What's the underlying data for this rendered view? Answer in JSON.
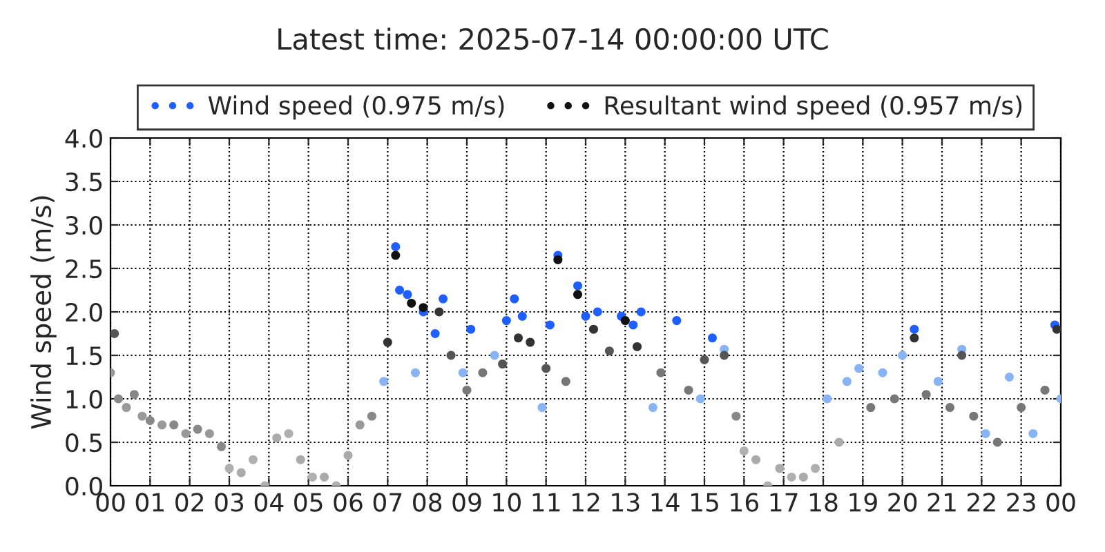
{
  "chart_data": {
    "type": "scatter",
    "title": "Latest time: 2025-07-14 00:00:00 UTC",
    "ylabel": "Wind speed (m/s)",
    "xlim": [
      0,
      24
    ],
    "ylim": [
      0,
      4
    ],
    "xticks": [
      {
        "value": 0,
        "label": "00"
      },
      {
        "value": 1,
        "label": "01"
      },
      {
        "value": 2,
        "label": "02"
      },
      {
        "value": 3,
        "label": "03"
      },
      {
        "value": 4,
        "label": "04"
      },
      {
        "value": 5,
        "label": "05"
      },
      {
        "value": 6,
        "label": "06"
      },
      {
        "value": 7,
        "label": "07"
      },
      {
        "value": 8,
        "label": "08"
      },
      {
        "value": 9,
        "label": "09"
      },
      {
        "value": 10,
        "label": "10"
      },
      {
        "value": 11,
        "label": "11"
      },
      {
        "value": 12,
        "label": "12"
      },
      {
        "value": 13,
        "label": "13"
      },
      {
        "value": 14,
        "label": "14"
      },
      {
        "value": 15,
        "label": "15"
      },
      {
        "value": 16,
        "label": "16"
      },
      {
        "value": 17,
        "label": "17"
      },
      {
        "value": 18,
        "label": "18"
      },
      {
        "value": 19,
        "label": "19"
      },
      {
        "value": 20,
        "label": "20"
      },
      {
        "value": 21,
        "label": "21"
      },
      {
        "value": 22,
        "label": "22"
      },
      {
        "value": 23,
        "label": "23"
      },
      {
        "value": 24,
        "label": "00"
      }
    ],
    "yticks": [
      {
        "value": 0,
        "label": "0.0"
      },
      {
        "value": 0.5,
        "label": "0.5"
      },
      {
        "value": 1,
        "label": "1.0"
      },
      {
        "value": 1.5,
        "label": "1.5"
      },
      {
        "value": 2,
        "label": "2.0"
      },
      {
        "value": 2.5,
        "label": "2.5"
      },
      {
        "value": 3,
        "label": "3.0"
      },
      {
        "value": 3.5,
        "label": "3.5"
      },
      {
        "value": 4,
        "label": "4.0"
      }
    ],
    "grid": true,
    "legend": "top",
    "marker": "circle",
    "series": [
      {
        "name": "Wind speed (0.975 m/s)",
        "color": "#1f5fff",
        "x": [
          0.0,
          0.4,
          0.8,
          1.3,
          1.9,
          2.5,
          3.0,
          3.6,
          3.9,
          4.5,
          5.1,
          5.7,
          6.3,
          6.9,
          7.2,
          7.3,
          7.5,
          7.7,
          7.9,
          8.2,
          8.4,
          8.9,
          9.1,
          9.7,
          10.0,
          10.2,
          10.4,
          10.9,
          11.1,
          11.3,
          11.8,
          12.0,
          12.3,
          12.9,
          13.2,
          13.4,
          13.7,
          14.3,
          14.9,
          15.2,
          15.5,
          16.0,
          16.6,
          17.2,
          17.8,
          18.1,
          18.6,
          18.9,
          19.5,
          20.0,
          20.3,
          20.9,
          21.5,
          22.1,
          22.7,
          23.3,
          23.85,
          24.0
        ],
        "values": [
          1.3,
          0.9,
          0.8,
          0.7,
          0.6,
          0.6,
          0.2,
          0.3,
          0.0,
          0.6,
          0.1,
          0.0,
          0.7,
          1.2,
          2.75,
          2.25,
          2.2,
          1.3,
          2.0,
          1.75,
          2.15,
          1.3,
          1.8,
          1.5,
          1.9,
          2.15,
          1.95,
          0.9,
          1.85,
          2.65,
          2.3,
          1.95,
          2.0,
          1.95,
          1.85,
          2.0,
          0.9,
          1.9,
          1.0,
          1.7,
          1.57,
          0.4,
          0.0,
          0.1,
          0.2,
          1.0,
          1.2,
          1.35,
          1.3,
          1.5,
          1.8,
          1.2,
          1.57,
          0.6,
          1.25,
          0.6,
          1.85,
          1.0
        ],
        "colors": [
          "#999999",
          "#999999",
          "#999999",
          "#999999",
          "#999999",
          "#999999",
          "#b0b0b0",
          "#b0b0b0",
          "#b0b0b0",
          "#b0b0b0",
          "#b0b0b0",
          "#b0b0b0",
          "#999999",
          "#88b4f5",
          "#1f5fff",
          "#1f5fff",
          "#1f5fff",
          "#88b4f5",
          "#1f5fff",
          "#1f5fff",
          "#1f5fff",
          "#88b4f5",
          "#1f5fff",
          "#88b4f5",
          "#1f5fff",
          "#1f5fff",
          "#1f5fff",
          "#88b4f5",
          "#1f5fff",
          "#1f5fff",
          "#1f5fff",
          "#1f5fff",
          "#1f5fff",
          "#1f5fff",
          "#1f5fff",
          "#1f5fff",
          "#88b4f5",
          "#1f5fff",
          "#88b4f5",
          "#1f5fff",
          "#88b4f5",
          "#b0b0b0",
          "#b0b0b0",
          "#b0b0b0",
          "#b0b0b0",
          "#88b4f5",
          "#88b4f5",
          "#88b4f5",
          "#88b4f5",
          "#88b4f5",
          "#1f5fff",
          "#88b4f5",
          "#88b4f5",
          "#88b4f5",
          "#88b4f5",
          "#88b4f5",
          "#1f5fff",
          "#88b4f5"
        ]
      },
      {
        "name": "Resultant wind speed (0.957 m/s)",
        "color": "#111111",
        "x": [
          0.1,
          0.2,
          0.6,
          1.0,
          1.6,
          2.2,
          2.8,
          3.3,
          4.2,
          4.8,
          5.4,
          6.0,
          6.6,
          7.0,
          7.2,
          7.6,
          7.9,
          8.3,
          8.6,
          9.0,
          9.4,
          9.9,
          10.3,
          10.6,
          11.0,
          11.3,
          11.5,
          11.8,
          12.2,
          12.6,
          13.0,
          13.3,
          13.9,
          14.6,
          15.0,
          15.5,
          15.8,
          16.3,
          16.9,
          17.5,
          18.4,
          19.2,
          19.8,
          20.3,
          20.6,
          21.2,
          21.5,
          21.8,
          22.4,
          23.0,
          23.6,
          23.9
        ],
        "values": [
          1.75,
          1.0,
          1.05,
          0.75,
          0.7,
          0.65,
          0.45,
          0.15,
          0.55,
          0.3,
          0.1,
          0.35,
          0.8,
          1.65,
          2.65,
          2.1,
          2.05,
          2.0,
          1.5,
          1.1,
          1.3,
          1.4,
          1.7,
          1.65,
          1.35,
          2.6,
          1.2,
          2.2,
          1.8,
          1.55,
          1.9,
          1.6,
          1.3,
          1.1,
          1.45,
          1.5,
          0.8,
          0.3,
          0.2,
          0.1,
          0.5,
          0.9,
          1.0,
          1.7,
          1.05,
          0.9,
          1.5,
          0.8,
          0.5,
          0.9,
          1.1,
          1.8
        ],
        "colors": [
          "#555555",
          "#888888",
          "#888888",
          "#888888",
          "#888888",
          "#888888",
          "#888888",
          "#aaaaaa",
          "#aaaaaa",
          "#aaaaaa",
          "#aaaaaa",
          "#aaaaaa",
          "#888888",
          "#333333",
          "#111111",
          "#111111",
          "#111111",
          "#333333",
          "#555555",
          "#777777",
          "#777777",
          "#555555",
          "#333333",
          "#333333",
          "#555555",
          "#111111",
          "#777777",
          "#111111",
          "#333333",
          "#555555",
          "#111111",
          "#333333",
          "#777777",
          "#777777",
          "#555555",
          "#555555",
          "#888888",
          "#aaaaaa",
          "#aaaaaa",
          "#aaaaaa",
          "#aaaaaa",
          "#777777",
          "#777777",
          "#333333",
          "#777777",
          "#777777",
          "#555555",
          "#777777",
          "#777777",
          "#777777",
          "#777777",
          "#333333"
        ]
      }
    ]
  }
}
